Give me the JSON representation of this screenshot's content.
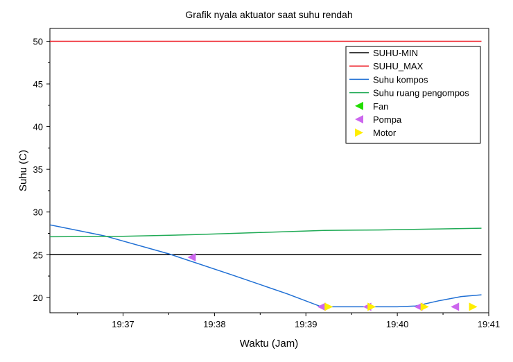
{
  "chart_data": {
    "type": "line",
    "title": "Grafik nyala aktuator saat suhu rendah",
    "xlabel": "Waktu (Jam)",
    "ylabel": "Suhu (C)",
    "x_unit": "minute-of-day",
    "xlim": [
      1176.2,
      1181.0
    ],
    "ylim": [
      18.2,
      51.5
    ],
    "x_ticks": [
      {
        "value": 1177,
        "label": "19:37"
      },
      {
        "value": 1178,
        "label": "19:38"
      },
      {
        "value": 1179,
        "label": "19:39"
      },
      {
        "value": 1180,
        "label": "19:40"
      },
      {
        "value": 1181,
        "label": "19:41"
      }
    ],
    "y_ticks": [
      20,
      25,
      30,
      35,
      40,
      45,
      50
    ],
    "legend_position": "top-right",
    "series": [
      {
        "name": "SUHU-MIN",
        "kind": "line",
        "color": "#000000",
        "x": [
          1176.2,
          1180.92
        ],
        "y": [
          25,
          25
        ]
      },
      {
        "name": "SUHU_MAX",
        "kind": "line",
        "color": "#ee1c25",
        "x": [
          1176.2,
          1180.92
        ],
        "y": [
          50,
          50
        ]
      },
      {
        "name": "Suhu kompos",
        "kind": "line",
        "color": "#1f6fd4",
        "x": [
          1176.2,
          1176.8,
          1177.5,
          1178.2,
          1178.8,
          1179.17,
          1179.6,
          1180.0,
          1180.2,
          1180.45,
          1180.7,
          1180.92
        ],
        "y": [
          28.5,
          27.2,
          25.1,
          22.6,
          20.4,
          18.9,
          18.9,
          18.9,
          19.0,
          19.6,
          20.1,
          20.3
        ]
      },
      {
        "name": "Suhu ruang pengompos",
        "kind": "line",
        "color": "#1faa55",
        "x": [
          1176.2,
          1177.0,
          1177.8,
          1178.5,
          1179.2,
          1179.8,
          1180.4,
          1180.92
        ],
        "y": [
          27.1,
          27.15,
          27.35,
          27.6,
          27.85,
          27.9,
          28.0,
          28.1
        ]
      },
      {
        "name": "Fan",
        "kind": "marker",
        "marker": "triangle-left",
        "color": "#22dd00",
        "x": [],
        "y": []
      },
      {
        "name": "Pompa",
        "kind": "marker",
        "marker": "triangle-left",
        "color": "#cc66ee",
        "x": [
          1177.75,
          1179.17,
          1179.67,
          1180.23,
          1180.63
        ],
        "y": [
          24.7,
          18.9,
          18.9,
          18.9,
          18.9
        ]
      },
      {
        "name": "Motor",
        "kind": "marker",
        "marker": "triangle-right",
        "color": "#ffee00",
        "x": [
          1179.25,
          1179.72,
          1180.3,
          1180.83
        ],
        "y": [
          18.9,
          18.9,
          18.9,
          18.9
        ]
      }
    ]
  }
}
